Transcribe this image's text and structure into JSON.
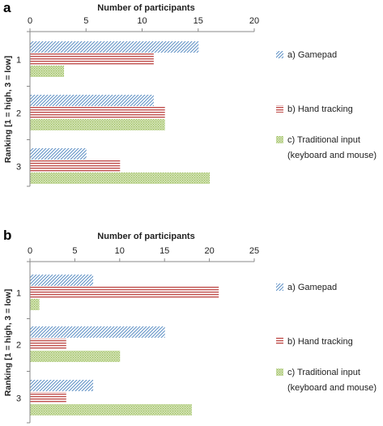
{
  "chart_data": [
    {
      "type": "bar",
      "orientation": "horizontal",
      "panel": "a",
      "xlabel": "Number of participants",
      "ylabel": "Ranking [1 = high, 3 = low]",
      "xlim": [
        0,
        20
      ],
      "xticks": [
        "0",
        "5",
        "10",
        "15",
        "20"
      ],
      "categories": [
        "1",
        "2",
        "3"
      ],
      "series": [
        {
          "name": "a) Gamepad",
          "values": [
            15,
            11,
            5
          ]
        },
        {
          "name": "b) Hand tracking",
          "values": [
            11,
            12,
            8
          ]
        },
        {
          "name": "c) Traditional input (keyboard and mouse)",
          "values": [
            3,
            12,
            16
          ]
        }
      ],
      "grid": false,
      "legend_position": "right",
      "legend_lines": [
        [
          "a) Gamepad"
        ],
        [
          "b) Hand tracking"
        ],
        [
          "c) Traditional input",
          "(keyboard and mouse)"
        ]
      ]
    },
    {
      "type": "bar",
      "orientation": "horizontal",
      "panel": "b",
      "xlabel": "Number of participants",
      "ylabel": "Ranking [1 = high, 3 = low]",
      "xlim": [
        0,
        25
      ],
      "xticks": [
        "0",
        "5",
        "10",
        "15",
        "20",
        "25"
      ],
      "categories": [
        "1",
        "2",
        "3"
      ],
      "series": [
        {
          "name": "a) Gamepad",
          "values": [
            7,
            15,
            7
          ]
        },
        {
          "name": "b) Hand tracking",
          "values": [
            21,
            4,
            4
          ]
        },
        {
          "name": "c) Traditional input (keyboard and mouse)",
          "values": [
            1,
            10,
            18
          ]
        }
      ],
      "grid": false,
      "legend_position": "right",
      "legend_lines": [
        [
          "a) Gamepad"
        ],
        [
          "b) Hand tracking"
        ],
        [
          "c) Traditional input",
          "(keyboard and mouse)"
        ]
      ]
    }
  ],
  "colors": {
    "gamepad": "#5b8ec4",
    "hand_tracking": "#c0504d",
    "traditional": "#9bbb59",
    "axis": "#8a8a8a"
  }
}
